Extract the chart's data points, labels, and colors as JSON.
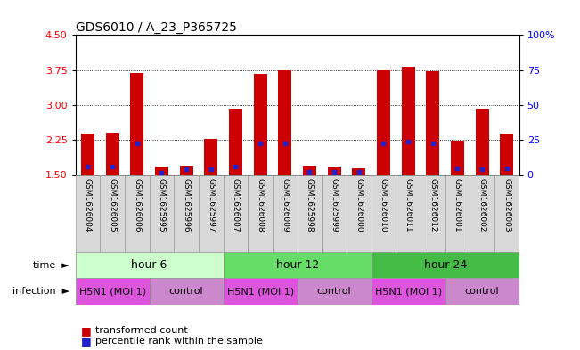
{
  "title": "GDS6010 / A_23_P365725",
  "samples": [
    "GSM1626004",
    "GSM1626005",
    "GSM1626006",
    "GSM1625995",
    "GSM1625996",
    "GSM1625997",
    "GSM1626007",
    "GSM1626008",
    "GSM1626009",
    "GSM1625998",
    "GSM1625999",
    "GSM1626000",
    "GSM1626010",
    "GSM1626011",
    "GSM1626012",
    "GSM1626001",
    "GSM1626002",
    "GSM1626003"
  ],
  "transformed_counts": [
    2.38,
    2.4,
    3.68,
    1.68,
    1.7,
    2.28,
    2.93,
    3.67,
    3.75,
    1.7,
    1.68,
    1.65,
    3.75,
    3.82,
    3.72,
    2.23,
    2.92,
    2.38
  ],
  "percentile_ranks": [
    1.68,
    1.68,
    2.18,
    1.55,
    1.62,
    1.63,
    1.68,
    2.18,
    2.18,
    1.57,
    1.57,
    1.57,
    2.18,
    2.22,
    2.18,
    1.65,
    1.63,
    1.65
  ],
  "ylim_left": [
    1.5,
    4.5
  ],
  "yticks_left": [
    1.5,
    2.25,
    3.0,
    3.75,
    4.5
  ],
  "yticks_right": [
    0,
    25,
    50,
    75,
    100
  ],
  "bar_color": "#cc0000",
  "dot_color": "#2222cc",
  "bar_width": 0.55,
  "groups": [
    {
      "label": "hour 6",
      "start": 0,
      "end": 5,
      "color": "#ccffcc"
    },
    {
      "label": "hour 12",
      "start": 6,
      "end": 11,
      "color": "#66dd66"
    },
    {
      "label": "hour 24",
      "start": 12,
      "end": 17,
      "color": "#44bb44"
    }
  ],
  "infections": [
    {
      "label": "H5N1 (MOI 1)",
      "start": 0,
      "end": 2,
      "color": "#dd55dd"
    },
    {
      "label": "control",
      "start": 3,
      "end": 5,
      "color": "#cc88cc"
    },
    {
      "label": "H5N1 (MOI 1)",
      "start": 6,
      "end": 8,
      "color": "#dd55dd"
    },
    {
      "label": "control",
      "start": 9,
      "end": 11,
      "color": "#cc88cc"
    },
    {
      "label": "H5N1 (MOI 1)",
      "start": 12,
      "end": 14,
      "color": "#dd55dd"
    },
    {
      "label": "control",
      "start": 15,
      "end": 17,
      "color": "#cc88cc"
    }
  ]
}
